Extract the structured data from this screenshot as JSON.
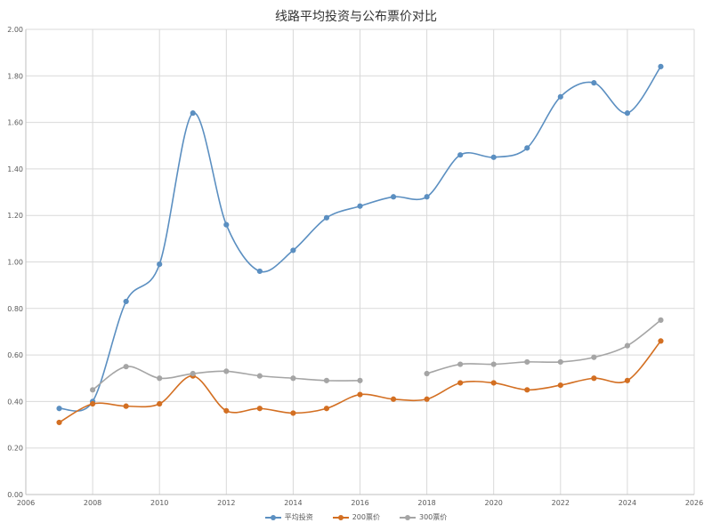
{
  "chart_data": {
    "type": "line",
    "title": "线路平均投资与公布票价对比",
    "xlim": [
      2006,
      2026
    ],
    "ylim": [
      0,
      2.0
    ],
    "x_ticks": [
      "2006",
      "2008",
      "2010",
      "2012",
      "2014",
      "2016",
      "2018",
      "2020",
      "2022",
      "2024",
      "2026"
    ],
    "y_ticks": [
      "0.00",
      "0.20",
      "0.40",
      "0.60",
      "0.80",
      "1.00",
      "1.20",
      "1.40",
      "1.60",
      "1.80",
      "2.00"
    ],
    "grid": true,
    "legend_position": "bottom",
    "series": [
      {
        "name": "平均投资",
        "color": "#5b8fc1",
        "points": [
          [
            2007,
            0.37
          ],
          [
            2008,
            0.4
          ],
          [
            2009,
            0.83
          ],
          [
            2010,
            0.99
          ],
          [
            2011,
            1.64
          ],
          [
            2012,
            1.16
          ],
          [
            2013,
            0.96
          ],
          [
            2014,
            1.05
          ],
          [
            2015,
            1.19
          ],
          [
            2016,
            1.24
          ],
          [
            2017,
            1.28
          ],
          [
            2018,
            1.28
          ],
          [
            2019,
            1.46
          ],
          [
            2020,
            1.45
          ],
          [
            2021,
            1.49
          ],
          [
            2022,
            1.71
          ],
          [
            2023,
            1.77
          ],
          [
            2024,
            1.64
          ],
          [
            2025,
            1.84
          ]
        ]
      },
      {
        "name": "200票价",
        "color": "#d36f22",
        "points": [
          [
            2007,
            0.31
          ],
          [
            2008,
            0.39
          ],
          [
            2009,
            0.38
          ],
          [
            2010,
            0.39
          ],
          [
            2011,
            0.51
          ],
          [
            2012,
            0.36
          ],
          [
            2013,
            0.37
          ],
          [
            2014,
            0.35
          ],
          [
            2015,
            0.37
          ],
          [
            2016,
            0.43
          ],
          [
            2017,
            0.41
          ],
          [
            2018,
            0.41
          ],
          [
            2019,
            0.48
          ],
          [
            2020,
            0.48
          ],
          [
            2021,
            0.45
          ],
          [
            2022,
            0.47
          ],
          [
            2023,
            0.5
          ],
          [
            2024,
            0.49
          ],
          [
            2025,
            0.66
          ]
        ]
      },
      {
        "name": "300票价",
        "color": "#a5a5a5",
        "segments": [
          [
            [
              2008,
              0.45
            ],
            [
              2009,
              0.55
            ],
            [
              2010,
              0.5
            ],
            [
              2011,
              0.52
            ],
            [
              2012,
              0.53
            ],
            [
              2013,
              0.51
            ],
            [
              2014,
              0.5
            ],
            [
              2015,
              0.49
            ],
            [
              2016,
              0.49
            ]
          ],
          [
            [
              2018,
              0.52
            ],
            [
              2019,
              0.56
            ],
            [
              2020,
              0.56
            ],
            [
              2021,
              0.57
            ],
            [
              2022,
              0.57
            ],
            [
              2023,
              0.59
            ],
            [
              2024,
              0.64
            ],
            [
              2025,
              0.75
            ]
          ]
        ]
      }
    ]
  }
}
